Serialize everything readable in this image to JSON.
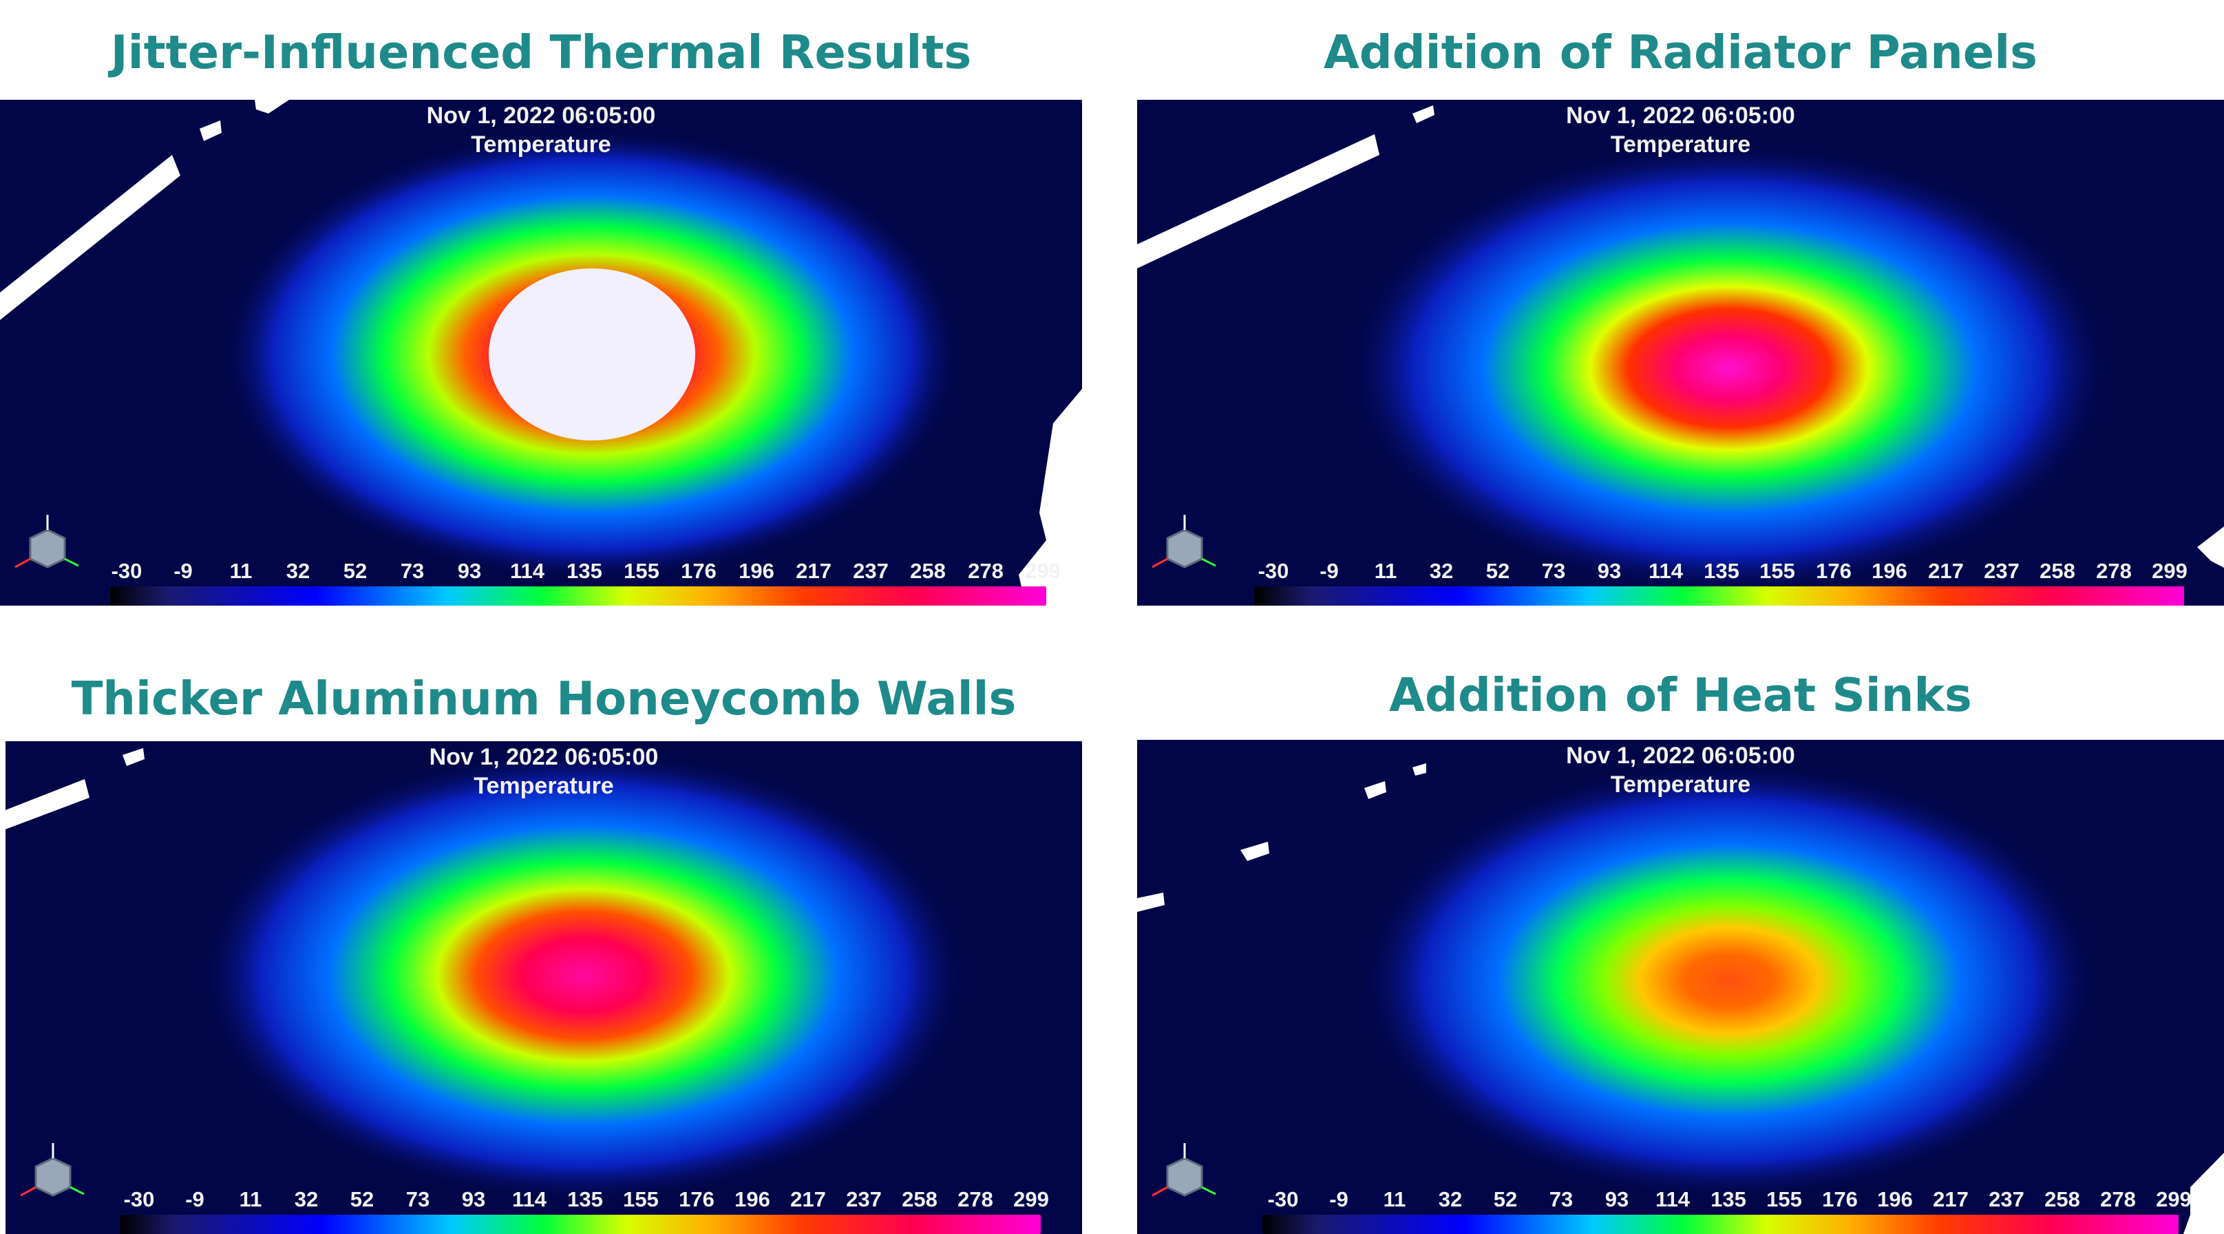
{
  "panels": [
    {
      "title": "Jitter-Influenced Thermal Results",
      "timestamp": "Nov 1, 2022 06:05:00",
      "quantity": "Temperature",
      "peak_color": "#f2f0ff"
    },
    {
      "title": "Addition of Radiator Panels",
      "timestamp": "Nov 1, 2022 06:05:00",
      "quantity": "Temperature",
      "peak_color": "#ff10d0"
    },
    {
      "title": "Thicker Aluminum Honeycomb Walls",
      "timestamp": "Nov 1, 2022 06:05:00",
      "quantity": "Temperature",
      "peak_color": "#ff0aa0"
    },
    {
      "title": "Addition of Heat Sinks",
      "timestamp": "Nov 1, 2022 06:05:00",
      "quantity": "Temperature",
      "peak_color": "#ff5010"
    }
  ],
  "scale_ticks": [
    "-30",
    "-9",
    "11",
    "32",
    "52",
    "73",
    "93",
    "114",
    "135",
    "155",
    "176",
    "196",
    "217",
    "237",
    "258",
    "278",
    "299"
  ],
  "colors": {
    "title_text": "#1f8a8a",
    "background": "#020648",
    "label_text": "#f2f2f2"
  },
  "icons": {
    "axis_triad": "axis-triad-icon"
  }
}
